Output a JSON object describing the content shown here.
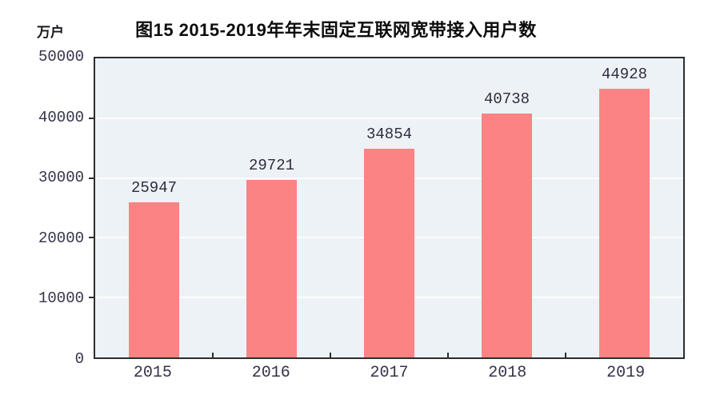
{
  "title": "图15 2015-2019年年末固定互联网宽带接入用户数",
  "unit_label": "万户",
  "chart_data": {
    "type": "bar",
    "title": "图15 2015-2019年年末固定互联网宽带接入用户数",
    "unit": "万户",
    "categories": [
      "2015",
      "2016",
      "2017",
      "2018",
      "2019"
    ],
    "values": [
      25947,
      29721,
      34854,
      40738,
      44928
    ],
    "value_labels": [
      "25947",
      "29721",
      "34854",
      "40738",
      "44928"
    ],
    "ylabel": "万户",
    "xlabel": "",
    "ylim": [
      0,
      50000
    ],
    "yticks": [
      0,
      10000,
      20000,
      30000,
      40000,
      50000
    ],
    "ytick_labels": [
      "0",
      "10000",
      "20000",
      "30000",
      "40000",
      "50000"
    ],
    "grid": true,
    "legend": false,
    "bar_color": "#fb8383",
    "plot_background": "#edf2f6",
    "gridline_color": "#fbfdfe",
    "axis_color": "#2d2d2d",
    "label_color": "#33334a"
  }
}
